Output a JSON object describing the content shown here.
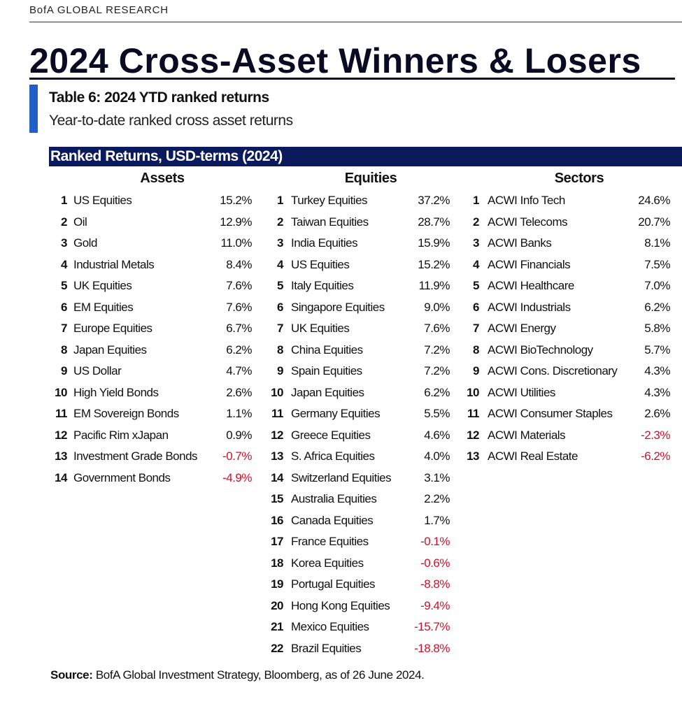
{
  "header": {
    "brand": "BofA GLOBAL RESEARCH",
    "title": "2024 Cross-Asset Winners & Losers"
  },
  "table": {
    "title": "Table 6: 2024 YTD ranked returns",
    "subtitle": "Year-to-date ranked cross asset returns",
    "band": "Ranked Returns, USD-terms (2024)",
    "columns": [
      {
        "heading": "Assets",
        "rows": [
          [
            "1",
            "US Equities",
            "15.2%"
          ],
          [
            "2",
            "Oil",
            "12.9%"
          ],
          [
            "3",
            "Gold",
            "11.0%"
          ],
          [
            "4",
            "Industrial Metals",
            "8.4%"
          ],
          [
            "5",
            "UK Equities",
            "7.6%"
          ],
          [
            "6",
            "EM Equities",
            "7.6%"
          ],
          [
            "7",
            "Europe Equities",
            "6.7%"
          ],
          [
            "8",
            "Japan Equities",
            "6.2%"
          ],
          [
            "9",
            "US Dollar",
            "4.7%"
          ],
          [
            "10",
            "High Yield Bonds",
            "2.6%"
          ],
          [
            "11",
            "EM Sovereign Bonds",
            "1.1%"
          ],
          [
            "12",
            "Pacific Rim xJapan",
            "0.9%"
          ],
          [
            "13",
            "Investment Grade Bonds",
            "-0.7%"
          ],
          [
            "14",
            "Government Bonds",
            "-4.9%"
          ]
        ]
      },
      {
        "heading": "Equities",
        "rows": [
          [
            "1",
            "Turkey Equities",
            "37.2%"
          ],
          [
            "2",
            "Taiwan Equities",
            "28.7%"
          ],
          [
            "3",
            "India Equities",
            "15.9%"
          ],
          [
            "4",
            "US Equities",
            "15.2%"
          ],
          [
            "5",
            "Italy Equities",
            "11.9%"
          ],
          [
            "6",
            "Singapore Equities",
            "9.0%"
          ],
          [
            "7",
            "UK Equities",
            "7.6%"
          ],
          [
            "8",
            "China Equities",
            "7.2%"
          ],
          [
            "9",
            "Spain Equities",
            "7.2%"
          ],
          [
            "10",
            "Japan Equities",
            "6.2%"
          ],
          [
            "11",
            "Germany Equities",
            "5.5%"
          ],
          [
            "12",
            "Greece Equities",
            "4.6%"
          ],
          [
            "13",
            "S. Africa Equities",
            "4.0%"
          ],
          [
            "14",
            "Switzerland Equities",
            "3.1%"
          ],
          [
            "15",
            "Australia Equities",
            "2.2%"
          ],
          [
            "16",
            "Canada Equities",
            "1.7%"
          ],
          [
            "17",
            "France Equities",
            "-0.1%"
          ],
          [
            "18",
            "Korea Equities",
            "-0.6%"
          ],
          [
            "19",
            "Portugal Equities",
            "-8.8%"
          ],
          [
            "20",
            "Hong Kong Equities",
            "-9.4%"
          ],
          [
            "21",
            "Mexico Equities",
            "-15.7%"
          ],
          [
            "22",
            "Brazil Equities",
            "-18.8%"
          ]
        ]
      },
      {
        "heading": "Sectors",
        "rows": [
          [
            "1",
            "ACWI Info Tech",
            "24.6%"
          ],
          [
            "2",
            "ACWI Telecoms",
            "20.7%"
          ],
          [
            "3",
            "ACWI Banks",
            "8.1%"
          ],
          [
            "4",
            "ACWI Financials",
            "7.5%"
          ],
          [
            "5",
            "ACWI Healthcare",
            "7.0%"
          ],
          [
            "6",
            "ACWI Industrials",
            "6.2%"
          ],
          [
            "7",
            "ACWI Energy",
            "5.8%"
          ],
          [
            "8",
            "ACWI BioTechnology",
            "5.7%"
          ],
          [
            "9",
            "ACWI Cons. Discretionary",
            "4.3%"
          ],
          [
            "10",
            "ACWI Utilities",
            "4.3%"
          ],
          [
            "11",
            "ACWI Consumer Staples",
            "2.6%"
          ],
          [
            "12",
            "ACWI Materials",
            "-2.3%"
          ],
          [
            "13",
            "ACWI Real Estate",
            "-6.2%"
          ]
        ]
      }
    ]
  },
  "source": {
    "label": "Source:",
    "text": " BofA Global Investment Strategy, Bloomberg, as of 26 June 2024."
  }
}
